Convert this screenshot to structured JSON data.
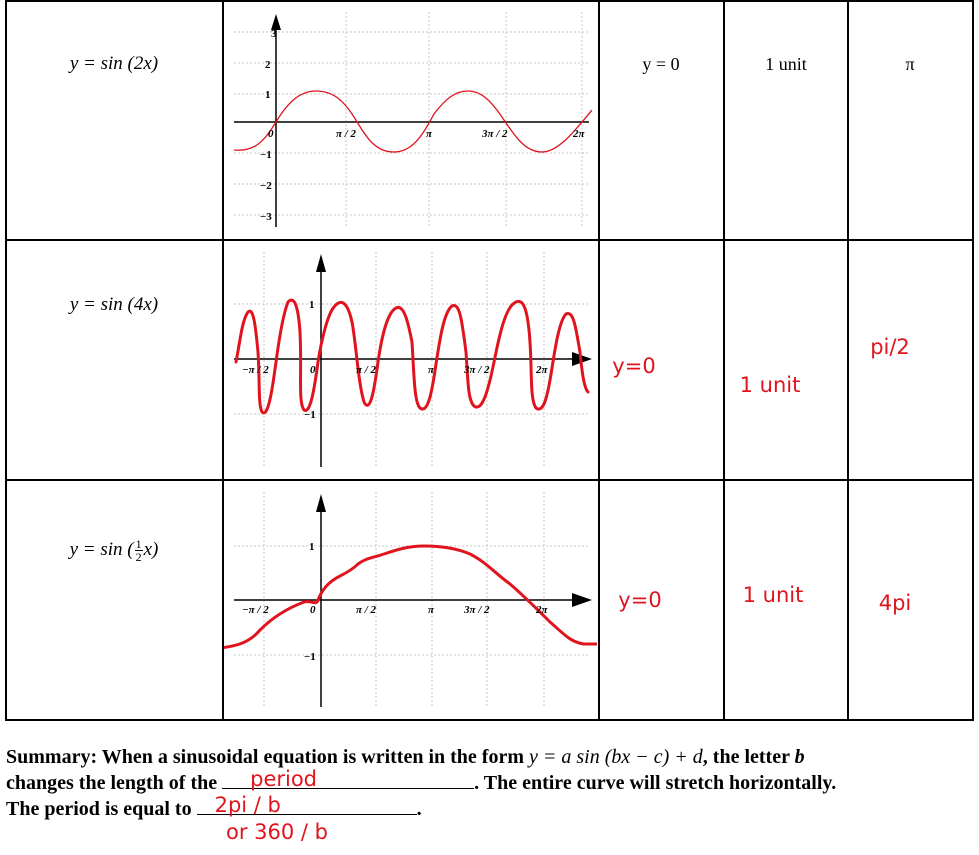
{
  "rows": [
    {
      "equation": "y = sin (2x)",
      "midline": "y = 0",
      "amplitude": "1 unit",
      "period": "π",
      "handwritten": false,
      "graph": {
        "x_ticks": [
          "0",
          "π / 2",
          "π",
          "3π / 2",
          "2π"
        ],
        "y_ticks": [
          "3",
          "2",
          "1",
          "−1",
          "−2",
          "−3"
        ]
      }
    },
    {
      "equation": "y = sin (4x)",
      "midline": "y=0",
      "amplitude": "1 unit",
      "period": "pi/2",
      "handwritten": true,
      "graph": {
        "x_ticks": [
          "−π / 2",
          "0",
          "π / 2",
          "π",
          "3π / 2",
          "2π"
        ],
        "y_ticks": [
          "1",
          "−1"
        ]
      }
    },
    {
      "equation_prefix": "y = sin (",
      "equation_frac_num": "1",
      "equation_frac_den": "2",
      "equation_suffix": "x)",
      "midline": "y=0",
      "amplitude": "1 unit",
      "period": "4pi",
      "handwritten": true,
      "graph": {
        "x_ticks": [
          "−π / 2",
          "0",
          "π / 2",
          "π",
          "3π / 2",
          "2π"
        ],
        "y_ticks": [
          "1",
          "−1"
        ]
      }
    }
  ],
  "summary": {
    "line1_prefix": "Summary: When a sinusoidal equation is written in the form ",
    "formula": "y = a sin (bx − c) + d",
    "line1_mid": ", the letter ",
    "letter": "b",
    "line2_prefix": "changes the length of the ",
    "blank1_answer": "period",
    "line2_suffix": ". The entire curve will stretch horizontally.",
    "line3_prefix": "The period is equal to ",
    "blank2_answer": "2pi / b",
    "line3_suffix": ".",
    "extra_answer": "or 360 / b"
  },
  "colors": {
    "ink": "#000000",
    "handwriting": "#e0141e",
    "grid": "#b8b8b8"
  }
}
